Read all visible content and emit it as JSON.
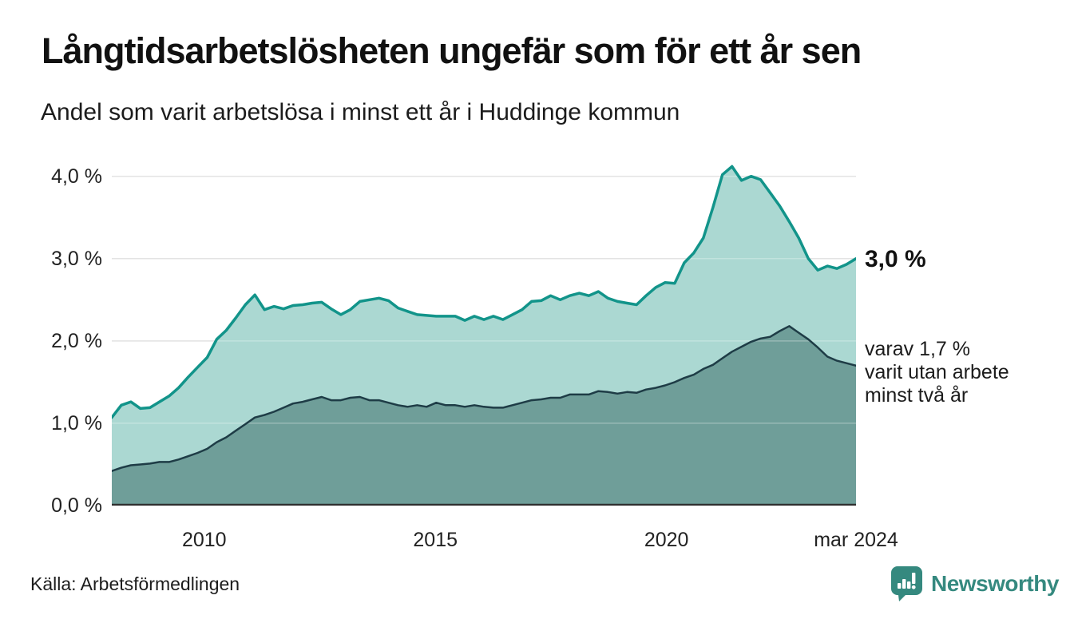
{
  "header": {
    "title": "Långtidsarbetslösheten ungefär som för ett år sen",
    "subtitle": "Andel som varit arbetslösa i minst ett år i Huddinge kommun"
  },
  "chart_data": {
    "type": "area",
    "title": "Långtidsarbetslösheten ungefär som för ett år sen",
    "subtitle": "Andel som varit arbetslösa i minst ett år i Huddinge kommun",
    "x_domain": [
      2008.0,
      2024.1
    ],
    "y_domain": [
      0,
      4.24
    ],
    "grid": "horizontal",
    "grid_color": "#d9d9d9",
    "baseline_color": "#2e2e2e",
    "x_ticks": [
      {
        "label": "2010",
        "year": 2010
      },
      {
        "label": "2015",
        "year": 2015
      },
      {
        "label": "2020",
        "year": 2020
      },
      {
        "label": "mar 2024",
        "year": 2024.1
      }
    ],
    "y_ticks": [
      {
        "label": "0,0 %",
        "value": 0
      },
      {
        "label": "1,0 %",
        "value": 1
      },
      {
        "label": "2,0 %",
        "value": 2
      },
      {
        "label": "3,0 %",
        "value": 3
      },
      {
        "label": "4,0 %",
        "value": 4
      }
    ],
    "series": [
      {
        "name": "Andel arbetslösa minst ett år",
        "color": "#12948a",
        "fill": "#abd8d2",
        "line_width": 3.5,
        "latest_value": 3.0,
        "values": [
          1.07,
          1.22,
          1.26,
          1.18,
          1.19,
          1.26,
          1.33,
          1.43,
          1.56,
          1.68,
          1.8,
          2.02,
          2.13,
          2.28,
          2.44,
          2.56,
          2.38,
          2.42,
          2.39,
          2.43,
          2.44,
          2.46,
          2.47,
          2.39,
          2.32,
          2.38,
          2.48,
          2.5,
          2.52,
          2.49,
          2.4,
          2.36,
          2.32,
          2.31,
          2.3,
          2.3,
          2.3,
          2.25,
          2.3,
          2.26,
          2.3,
          2.26,
          2.32,
          2.38,
          2.48,
          2.49,
          2.55,
          2.5,
          2.55,
          2.58,
          2.55,
          2.6,
          2.52,
          2.48,
          2.46,
          2.44,
          2.55,
          2.65,
          2.71,
          2.7,
          2.95,
          3.07,
          3.25,
          3.62,
          4.02,
          4.12,
          3.95,
          4.0,
          3.96,
          3.8,
          3.64,
          3.45,
          3.25,
          3.0,
          2.86,
          2.91,
          2.88,
          2.93,
          3.0
        ]
      },
      {
        "name": "varav arbetslösa minst två år",
        "color": "#1e3c46",
        "fill": "#6f9e99",
        "line_width": 2.5,
        "latest_value": 1.7,
        "values": [
          0.42,
          0.46,
          0.49,
          0.5,
          0.51,
          0.53,
          0.53,
          0.56,
          0.6,
          0.64,
          0.69,
          0.77,
          0.83,
          0.91,
          0.99,
          1.07,
          1.1,
          1.14,
          1.19,
          1.24,
          1.26,
          1.29,
          1.32,
          1.28,
          1.28,
          1.31,
          1.32,
          1.28,
          1.28,
          1.25,
          1.22,
          1.2,
          1.22,
          1.2,
          1.25,
          1.22,
          1.22,
          1.2,
          1.22,
          1.2,
          1.19,
          1.19,
          1.22,
          1.25,
          1.28,
          1.29,
          1.31,
          1.31,
          1.35,
          1.35,
          1.35,
          1.39,
          1.38,
          1.36,
          1.38,
          1.37,
          1.41,
          1.43,
          1.46,
          1.5,
          1.55,
          1.59,
          1.66,
          1.71,
          1.79,
          1.87,
          1.93,
          1.99,
          2.03,
          2.05,
          2.12,
          2.18,
          2.1,
          2.02,
          1.92,
          1.81,
          1.76,
          1.73,
          1.7
        ]
      }
    ]
  },
  "annotations": {
    "latest_total": "3,0 %",
    "sub_lines": [
      "varav 1,7 %",
      "varit utan arbete",
      "minst två år"
    ]
  },
  "footer": {
    "source": "Källa: Arbetsförmedlingen",
    "brand": "Newsworthy"
  },
  "colors": {
    "brand_teal": "#35897f",
    "title_text": "#111111",
    "body_text": "#1c1c1c"
  }
}
